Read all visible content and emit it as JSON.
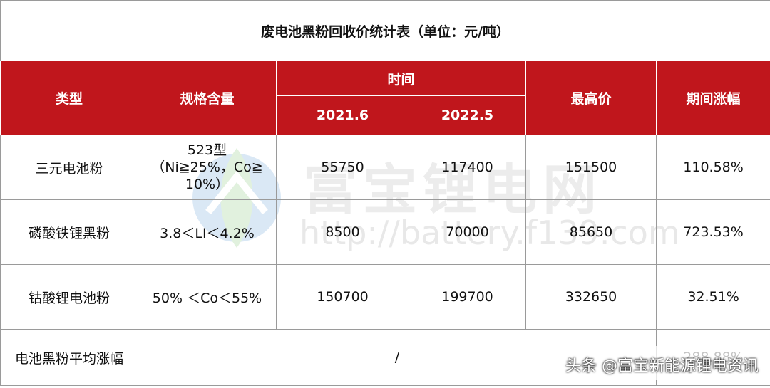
{
  "table": {
    "title": "废电池黑粉回收价统计表（单位：元/吨）",
    "headers": {
      "type": "类型",
      "spec": "规格含量",
      "time": "时间",
      "t1": "2021.6",
      "t2": "2022.5",
      "max": "最高价",
      "change": "期间涨幅"
    },
    "rows": [
      {
        "type": "三元电池粉",
        "spec_lines": [
          "523型",
          "（Ni≧25%，Co≧",
          "10%）"
        ],
        "t1": "55750",
        "t2": "117400",
        "max": "151500",
        "change": "110.58%"
      },
      {
        "type": "磷酸铁锂黑粉",
        "spec": "3.8＜LI＜4.2%",
        "t1": "8500",
        "t2": "70000",
        "max": "85650",
        "change": "723.53%"
      },
      {
        "type": "钴酸锂电池粉",
        "spec": "50% ＜Co＜55%",
        "t1": "150700",
        "t2": "199700",
        "max": "332650",
        "change": "32.51%"
      }
    ],
    "summary": {
      "label": "电池黑粉平均涨幅",
      "value": "/",
      "change": "288.88%"
    }
  },
  "watermark": {
    "text": "富宝锂电网",
    "url": "http://battery.f139.com"
  },
  "credit": "头条 @富宝新能源锂电资讯",
  "colors": {
    "header_bg": "#c0161c",
    "header_text": "#ffffff",
    "border": "#9a9a9a"
  }
}
